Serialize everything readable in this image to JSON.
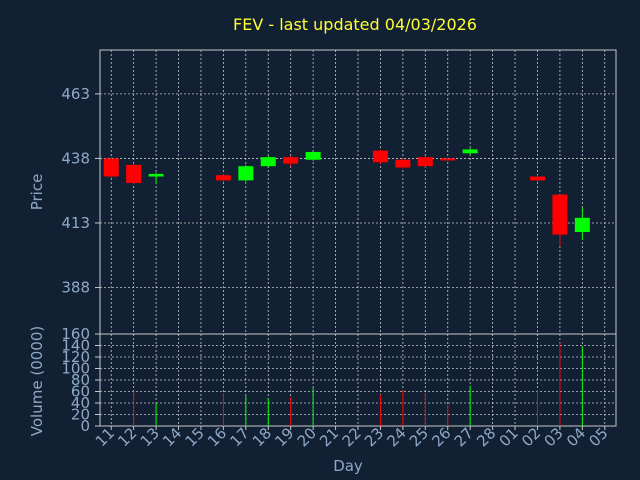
{
  "title": "FEV - last updated 04/03/2026",
  "colors": {
    "background": "#112033",
    "title": "#ffff33",
    "text": "#8fa8c8",
    "axis": "#c8c8c8",
    "grid": "#c8c8c8",
    "up": "#00ff00",
    "down": "#ff0000"
  },
  "chart_data": [
    {
      "type": "candlestick",
      "ylabel": "Price",
      "xlabel": "",
      "ylim": [
        370,
        480
      ],
      "yticks": [
        388,
        413,
        438,
        463
      ],
      "grid": true,
      "candles": [
        {
          "day": "11",
          "open": 438.0,
          "close": 431.0,
          "high": 438.5,
          "low": 430.5
        },
        {
          "day": "12",
          "open": 435.5,
          "close": 428.5,
          "high": 436.0,
          "low": 428.0
        },
        {
          "day": "13",
          "open": 431.0,
          "close": 432.0,
          "high": 432.5,
          "low": 428.0
        },
        {
          "day": "16",
          "open": 431.5,
          "close": 429.5,
          "high": 432.0,
          "low": 429.0
        },
        {
          "day": "17",
          "open": 429.5,
          "close": 435.0,
          "high": 435.5,
          "low": 429.0
        },
        {
          "day": "18",
          "open": 435.0,
          "close": 438.5,
          "high": 439.0,
          "low": 434.5
        },
        {
          "day": "19",
          "open": 438.5,
          "close": 436.0,
          "high": 439.0,
          "low": 435.0
        },
        {
          "day": "20",
          "open": 437.5,
          "close": 440.5,
          "high": 441.0,
          "low": 437.0
        },
        {
          "day": "23",
          "open": 441.0,
          "close": 436.5,
          "high": 441.5,
          "low": 436.0
        },
        {
          "day": "24",
          "open": 437.5,
          "close": 434.5,
          "high": 438.0,
          "low": 434.0
        },
        {
          "day": "25",
          "open": 438.5,
          "close": 435.0,
          "high": 439.0,
          "low": 434.5
        },
        {
          "day": "26",
          "open": 438.0,
          "close": 437.5,
          "high": 438.5,
          "low": 437.0
        },
        {
          "day": "27",
          "open": 440.0,
          "close": 441.5,
          "high": 442.0,
          "low": 439.5
        },
        {
          "day": "02",
          "open": 431.0,
          "close": 429.5,
          "high": 431.5,
          "low": 429.0
        },
        {
          "day": "03",
          "open": 424.0,
          "close": 408.5,
          "high": 424.0,
          "low": 404.0
        },
        {
          "day": "04",
          "open": 409.5,
          "close": 415.0,
          "high": 419.0,
          "low": 406.5
        }
      ]
    },
    {
      "type": "bar",
      "ylabel": "Volume (0000)",
      "xlabel": "Day",
      "ylim": [
        0,
        160
      ],
      "yticks": [
        0,
        20,
        40,
        60,
        80,
        100,
        120,
        140,
        160
      ],
      "grid": true,
      "x_categories": [
        "11",
        "12",
        "13",
        "14",
        "15",
        "16",
        "17",
        "18",
        "19",
        "20",
        "21",
        "22",
        "23",
        "24",
        "25",
        "26",
        "27",
        "28",
        "01",
        "02",
        "03",
        "04",
        "05"
      ],
      "bars": [
        {
          "day": "12",
          "value": 60,
          "direction": "down"
        },
        {
          "day": "13",
          "value": 40,
          "direction": "up"
        },
        {
          "day": "16",
          "value": 57,
          "direction": "down"
        },
        {
          "day": "17",
          "value": 52,
          "direction": "up"
        },
        {
          "day": "18",
          "value": 48,
          "direction": "up"
        },
        {
          "day": "19",
          "value": 50,
          "direction": "down"
        },
        {
          "day": "20",
          "value": 66,
          "direction": "up"
        },
        {
          "day": "23",
          "value": 54,
          "direction": "down"
        },
        {
          "day": "24",
          "value": 62,
          "direction": "down"
        },
        {
          "day": "25",
          "value": 58,
          "direction": "down"
        },
        {
          "day": "26",
          "value": 36,
          "direction": "down"
        },
        {
          "day": "27",
          "value": 70,
          "direction": "up"
        },
        {
          "day": "02",
          "value": 62,
          "direction": "down"
        },
        {
          "day": "03",
          "value": 144,
          "direction": "down"
        },
        {
          "day": "04",
          "value": 138,
          "direction": "up"
        }
      ]
    }
  ]
}
